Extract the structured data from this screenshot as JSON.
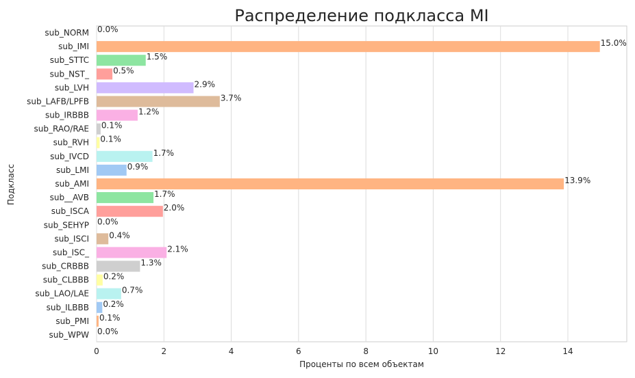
{
  "chart_data": {
    "type": "bar",
    "orientation": "horizontal",
    "title": "Распределение подкласса MI",
    "xlabel": "Проценты по всем объектам",
    "ylabel": "Подкласс",
    "xlim": [
      0,
      15.75
    ],
    "xticks": [
      0,
      2,
      4,
      6,
      8,
      10,
      12,
      14
    ],
    "grid": "vertical",
    "value_label_suffix": "%",
    "categories": [
      "sub_NORM",
      "sub_IMI",
      "sub_STTC",
      "sub_NST_",
      "sub_LVH",
      "sub_LAFB/LPFB",
      "sub_IRBBB",
      "sub_RAO/RAE",
      "sub_RVH",
      "sub_IVCD",
      "sub_LMI",
      "sub_AMI",
      "sub__AVB",
      "sub_ISCA",
      "sub_SEHYP",
      "sub_ISCI",
      "sub_ISC_",
      "sub_CRBBB",
      "sub_CLBBB",
      "sub_LAO/LAE",
      "sub_ILBBB",
      "sub_PMI",
      "sub_WPW"
    ],
    "values": [
      0.0,
      14.95,
      1.46,
      0.47,
      2.88,
      3.66,
      1.22,
      0.12,
      0.09,
      1.66,
      0.89,
      13.88,
      1.69,
      1.97,
      0.0,
      0.35,
      2.08,
      1.29,
      0.18,
      0.73,
      0.17,
      0.06,
      0.0
    ],
    "labels": [
      "0.0%",
      "15.0%",
      "1.5%",
      "0.5%",
      "2.9%",
      "3.7%",
      "1.2%",
      "0.1%",
      "0.1%",
      "1.7%",
      "0.9%",
      "13.9%",
      "1.7%",
      "2.0%",
      "0.0%",
      "0.4%",
      "2.1%",
      "1.3%",
      "0.2%",
      "0.7%",
      "0.2%",
      "0.1%",
      "0.0%"
    ],
    "colors": [
      "#a1c9f4",
      "#ffb482",
      "#8de5a1",
      "#ff9f9b",
      "#d0bbff",
      "#debb9b",
      "#fab0e4",
      "#cfcfcf",
      "#fffea3",
      "#b9f2f0"
    ]
  }
}
